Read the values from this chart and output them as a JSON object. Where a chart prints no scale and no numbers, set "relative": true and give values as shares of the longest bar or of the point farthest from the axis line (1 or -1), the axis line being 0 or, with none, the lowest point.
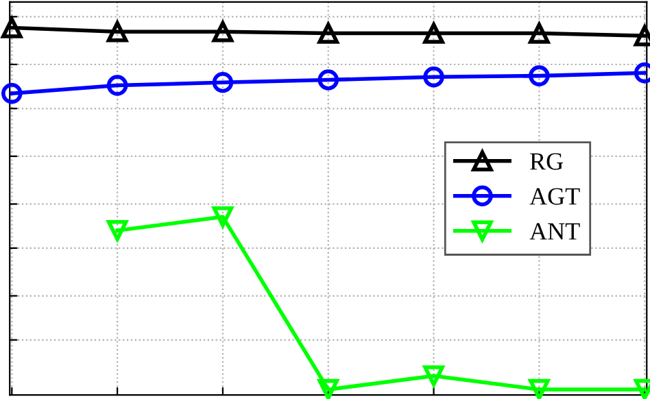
{
  "chart_data": {
    "type": "line",
    "relative": true,
    "categories": [
      null,
      null,
      null,
      null,
      null,
      null,
      null
    ],
    "series": [
      {
        "name": "RG",
        "color": "#000000",
        "marker": "triangle",
        "values": [
          1,
          0.989,
          0.989,
          0.985,
          0.985,
          0.985,
          0.978
        ]
      },
      {
        "name": "AGT",
        "color": "#0000ff",
        "marker": "circle",
        "values": [
          0.821,
          0.843,
          0.851,
          0.858,
          0.866,
          0.869,
          0.877
        ]
      },
      {
        "name": "ANT",
        "color": "#00ff00",
        "marker": "triangle_down",
        "values": [
          null,
          0.448,
          0.485,
          0.015,
          0.052,
          0.015,
          0.015
        ]
      }
    ],
    "grid": true,
    "legend": "center right",
    "line_style": "solid"
  }
}
